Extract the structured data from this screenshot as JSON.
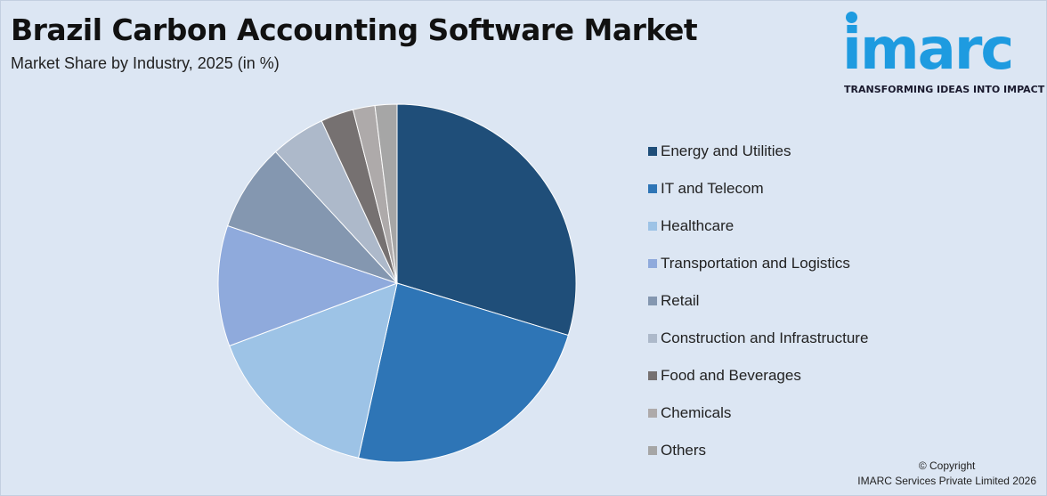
{
  "header": {
    "title": "Brazil Carbon Accounting Software Market",
    "subtitle": "Market Share by Industry, 2025 (in %)"
  },
  "logo": {
    "word": "imarc",
    "tagline": "TRANSFORMING IDEAS INTO IMPACT",
    "color": "#1e9be0"
  },
  "chart_data": {
    "type": "pie",
    "title": "Brazil Carbon Accounting Software Market",
    "subtitle": "Market Share by Industry, 2025 (in %)",
    "legend_position": "right",
    "categories": [
      "Energy and Utilities",
      "IT and Telecom",
      "Healthcare",
      "Transportation and Logistics",
      "Retail",
      "Construction and Infrastructure",
      "Food and Beverages",
      "Chemicals",
      "Others"
    ],
    "values": [
      30,
      24,
      16,
      11,
      8,
      5,
      3,
      2,
      2
    ],
    "colors": [
      "#1f4e79",
      "#2e75b6",
      "#9dc3e6",
      "#8faadc",
      "#8497b0",
      "#adb9ca",
      "#767171",
      "#aeaaaa",
      "#a6a6a6"
    ]
  },
  "footer": {
    "copyright_line1": "© Copyright",
    "copyright_line2": "IMARC Services Private Limited 2026"
  }
}
